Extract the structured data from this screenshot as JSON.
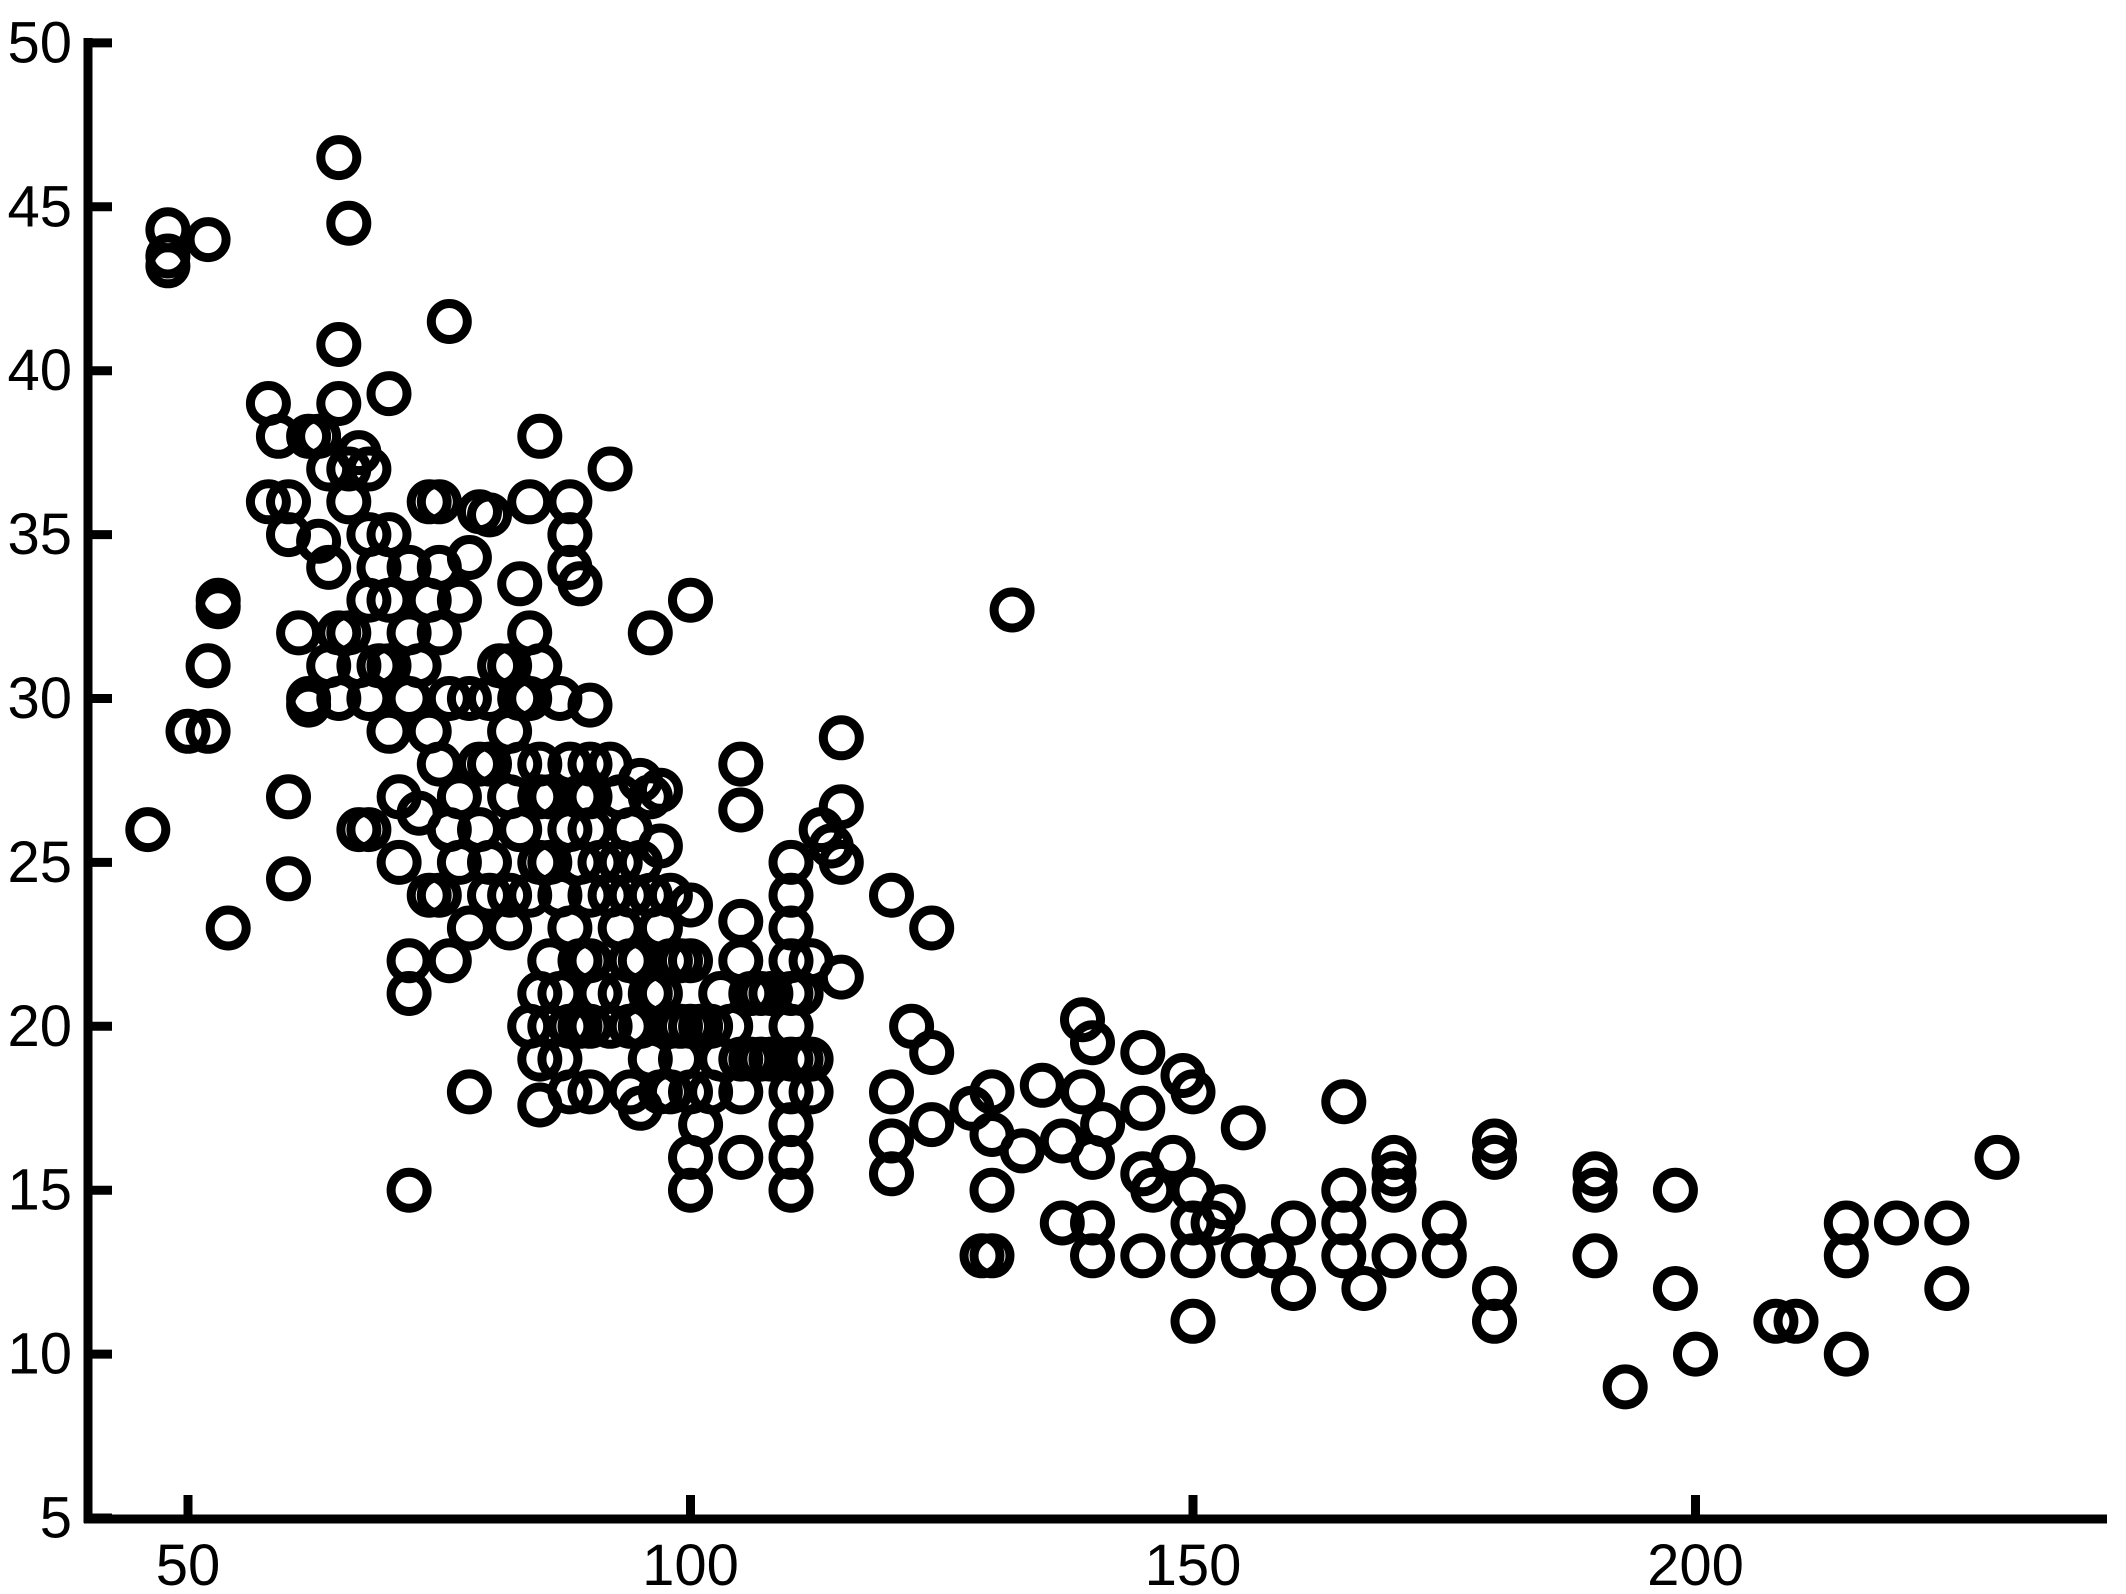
{
  "chart_data": {
    "type": "scatter",
    "title": "",
    "xlabel": "",
    "ylabel": "",
    "xlim": [
      40,
      240
    ],
    "ylim": [
      5,
      50
    ],
    "x_ticks": [
      50,
      100,
      150,
      200
    ],
    "y_ticks": [
      5,
      10,
      15,
      20,
      25,
      30,
      35,
      40,
      45,
      50
    ],
    "grid": false,
    "legend": "none",
    "marker": "open-circle",
    "color": "#000000",
    "series": [
      {
        "points": [
          [
            46,
            26
          ],
          [
            48,
            44.3
          ],
          [
            48,
            43.5
          ],
          [
            48,
            43.2
          ],
          [
            50,
            29
          ],
          [
            52,
            29
          ],
          [
            52,
            31
          ],
          [
            52,
            44
          ],
          [
            53,
            33
          ],
          [
            53,
            32.8
          ],
          [
            54,
            23
          ],
          [
            58,
            39
          ],
          [
            58,
            36
          ],
          [
            59,
            38
          ],
          [
            60,
            36
          ],
          [
            60,
            35
          ],
          [
            60,
            27
          ],
          [
            60,
            24.5
          ],
          [
            61,
            32
          ],
          [
            62,
            38
          ],
          [
            62,
            30
          ],
          [
            62,
            29.8
          ],
          [
            63,
            38
          ],
          [
            63,
            34.8
          ],
          [
            64,
            37
          ],
          [
            64,
            34
          ],
          [
            64,
            31
          ],
          [
            65,
            39
          ],
          [
            65,
            32
          ],
          [
            65,
            30
          ],
          [
            65,
            40.8
          ],
          [
            65,
            46.5
          ],
          [
            66,
            37
          ],
          [
            66,
            36
          ],
          [
            66,
            44.5
          ],
          [
            66,
            32
          ],
          [
            67,
            37.5
          ],
          [
            67,
            31
          ],
          [
            67,
            26
          ],
          [
            68,
            37
          ],
          [
            68,
            35
          ],
          [
            68,
            33
          ],
          [
            68,
            30
          ],
          [
            68,
            26
          ],
          [
            69,
            34
          ],
          [
            69,
            31
          ],
          [
            70,
            39.3
          ],
          [
            70,
            35
          ],
          [
            70,
            33
          ],
          [
            70,
            31
          ],
          [
            70,
            29
          ],
          [
            71,
            27
          ],
          [
            71,
            25
          ],
          [
            72,
            34
          ],
          [
            72,
            32
          ],
          [
            72,
            30
          ],
          [
            72,
            22
          ],
          [
            72,
            21
          ],
          [
            72,
            15
          ],
          [
            73,
            31
          ],
          [
            73,
            26.5
          ],
          [
            74,
            36
          ],
          [
            74,
            33
          ],
          [
            74,
            29
          ],
          [
            74,
            24
          ],
          [
            75,
            36
          ],
          [
            75,
            34
          ],
          [
            75,
            32
          ],
          [
            75,
            28
          ],
          [
            75,
            24
          ],
          [
            76,
            41.5
          ],
          [
            76,
            30
          ],
          [
            76,
            26
          ],
          [
            76,
            22
          ],
          [
            77,
            33
          ],
          [
            77,
            27
          ],
          [
            77,
            25
          ],
          [
            78,
            34.3
          ],
          [
            78,
            30
          ],
          [
            78,
            23
          ],
          [
            78,
            18
          ],
          [
            79,
            35.7
          ],
          [
            79,
            28
          ],
          [
            79,
            26
          ],
          [
            80,
            35.6
          ],
          [
            80,
            30
          ],
          [
            80,
            28
          ],
          [
            80,
            25
          ],
          [
            80,
            24
          ],
          [
            81,
            31
          ],
          [
            82,
            31
          ],
          [
            82,
            29
          ],
          [
            82,
            27
          ],
          [
            82,
            24
          ],
          [
            82,
            23
          ],
          [
            83,
            33.5
          ],
          [
            83,
            30
          ],
          [
            83,
            28
          ],
          [
            83,
            26
          ],
          [
            84,
            36
          ],
          [
            84,
            32
          ],
          [
            84,
            30
          ],
          [
            84,
            24
          ],
          [
            84,
            20
          ],
          [
            85,
            38
          ],
          [
            85,
            31
          ],
          [
            85,
            28
          ],
          [
            85,
            27
          ],
          [
            85,
            25
          ],
          [
            85,
            21
          ],
          [
            85,
            19
          ],
          [
            85,
            17.6
          ],
          [
            86,
            27
          ],
          [
            86,
            25
          ],
          [
            86,
            22
          ],
          [
            86,
            20
          ],
          [
            87,
            30
          ],
          [
            87,
            24
          ],
          [
            87,
            21
          ],
          [
            87,
            19
          ],
          [
            88,
            36
          ],
          [
            88,
            35
          ],
          [
            88,
            34
          ],
          [
            88,
            28
          ],
          [
            88,
            26
          ],
          [
            88,
            23
          ],
          [
            88,
            20
          ],
          [
            88,
            18
          ],
          [
            89,
            33.5
          ],
          [
            89,
            27
          ],
          [
            89,
            25
          ],
          [
            89,
            22
          ],
          [
            89,
            20
          ],
          [
            90,
            29.8
          ],
          [
            90,
            28
          ],
          [
            90,
            27
          ],
          [
            90,
            26
          ],
          [
            90,
            24
          ],
          [
            90,
            22
          ],
          [
            90,
            20
          ],
          [
            90,
            18
          ],
          [
            91,
            25
          ],
          [
            91,
            21
          ],
          [
            92,
            37
          ],
          [
            92,
            28
          ],
          [
            92,
            24
          ],
          [
            92,
            20
          ],
          [
            93,
            27
          ],
          [
            93,
            25
          ],
          [
            93,
            23
          ],
          [
            93,
            21
          ],
          [
            94,
            26
          ],
          [
            94,
            24
          ],
          [
            94,
            22
          ],
          [
            94,
            20
          ],
          [
            94,
            18
          ],
          [
            95,
            27.5
          ],
          [
            95,
            25
          ],
          [
            95,
            22
          ],
          [
            95,
            20
          ],
          [
            95,
            17.5
          ],
          [
            96,
            32
          ],
          [
            96,
            27
          ],
          [
            96,
            24
          ],
          [
            96,
            21
          ],
          [
            96,
            19
          ],
          [
            97,
            27.2
          ],
          [
            97,
            25.5
          ],
          [
            97,
            23
          ],
          [
            97,
            21
          ],
          [
            97,
            18
          ],
          [
            98,
            24
          ],
          [
            98,
            22
          ],
          [
            98,
            20
          ],
          [
            98,
            18
          ],
          [
            99,
            22
          ],
          [
            99,
            20
          ],
          [
            99,
            19
          ],
          [
            100,
            33
          ],
          [
            100,
            23.7
          ],
          [
            100,
            22
          ],
          [
            100,
            20
          ],
          [
            100,
            18
          ],
          [
            100,
            16
          ],
          [
            100,
            15
          ],
          [
            101,
            20
          ],
          [
            101,
            17
          ],
          [
            102,
            20
          ],
          [
            102,
            18
          ],
          [
            103,
            21
          ],
          [
            103,
            19
          ],
          [
            104,
            20
          ],
          [
            105,
            28
          ],
          [
            105,
            26.6
          ],
          [
            105,
            23.2
          ],
          [
            105,
            22
          ],
          [
            105,
            19
          ],
          [
            105,
            18
          ],
          [
            105,
            16
          ],
          [
            106,
            21
          ],
          [
            106,
            19
          ],
          [
            107,
            21
          ],
          [
            107,
            19
          ],
          [
            108,
            21
          ],
          [
            108,
            19
          ],
          [
            110,
            25
          ],
          [
            110,
            24
          ],
          [
            110,
            23
          ],
          [
            110,
            22
          ],
          [
            110,
            21
          ],
          [
            110,
            20
          ],
          [
            110,
            19
          ],
          [
            110,
            18
          ],
          [
            110,
            17
          ],
          [
            110,
            16
          ],
          [
            110,
            15
          ],
          [
            111,
            21
          ],
          [
            111,
            19
          ],
          [
            112,
            22
          ],
          [
            112,
            19
          ],
          [
            112,
            18
          ],
          [
            113,
            26
          ],
          [
            114,
            25.5
          ],
          [
            115,
            28.8
          ],
          [
            115,
            26.7
          ],
          [
            115,
            25
          ],
          [
            115,
            21.5
          ],
          [
            120,
            24
          ],
          [
            120,
            18
          ],
          [
            120,
            16.5
          ],
          [
            120,
            15.5
          ],
          [
            122,
            20
          ],
          [
            124,
            23
          ],
          [
            124,
            19.2
          ],
          [
            124,
            17
          ],
          [
            128,
            17.5
          ],
          [
            129,
            13
          ],
          [
            130,
            18
          ],
          [
            130,
            16.7
          ],
          [
            130,
            15
          ],
          [
            130,
            13
          ],
          [
            132,
            32.7
          ],
          [
            133,
            16.2
          ],
          [
            135,
            18.2
          ],
          [
            137,
            16.5
          ],
          [
            137,
            14
          ],
          [
            139,
            20.2
          ],
          [
            139,
            18
          ],
          [
            140,
            19.5
          ],
          [
            140,
            16
          ],
          [
            140,
            14
          ],
          [
            140,
            13
          ],
          [
            141,
            17
          ],
          [
            145,
            19.2
          ],
          [
            145,
            17.5
          ],
          [
            145,
            15.5
          ],
          [
            145,
            13
          ],
          [
            146,
            15
          ],
          [
            148,
            16
          ],
          [
            149,
            18.5
          ],
          [
            150,
            18
          ],
          [
            150,
            15
          ],
          [
            150,
            14
          ],
          [
            150,
            13
          ],
          [
            150,
            11
          ],
          [
            152,
            14
          ],
          [
            153,
            14.5
          ],
          [
            155,
            16.9
          ],
          [
            155,
            13
          ],
          [
            158,
            13
          ],
          [
            160,
            14
          ],
          [
            160,
            12
          ],
          [
            165,
            17.7
          ],
          [
            165,
            15
          ],
          [
            165,
            14
          ],
          [
            165,
            13
          ],
          [
            167,
            12
          ],
          [
            170,
            16
          ],
          [
            170,
            15.5
          ],
          [
            170,
            15
          ],
          [
            170,
            13
          ],
          [
            175,
            14
          ],
          [
            175,
            13
          ],
          [
            180,
            16.5
          ],
          [
            180,
            16
          ],
          [
            180,
            12
          ],
          [
            180,
            11
          ],
          [
            190,
            15.5
          ],
          [
            190,
            15
          ],
          [
            190,
            13
          ],
          [
            193,
            9
          ],
          [
            198,
            15
          ],
          [
            198,
            12
          ],
          [
            200,
            10
          ],
          [
            208,
            11
          ],
          [
            210,
            11
          ],
          [
            215,
            14
          ],
          [
            215,
            13
          ],
          [
            215,
            10
          ],
          [
            220,
            14
          ],
          [
            225,
            14
          ],
          [
            225,
            12
          ],
          [
            230,
            16
          ]
        ]
      }
    ]
  }
}
